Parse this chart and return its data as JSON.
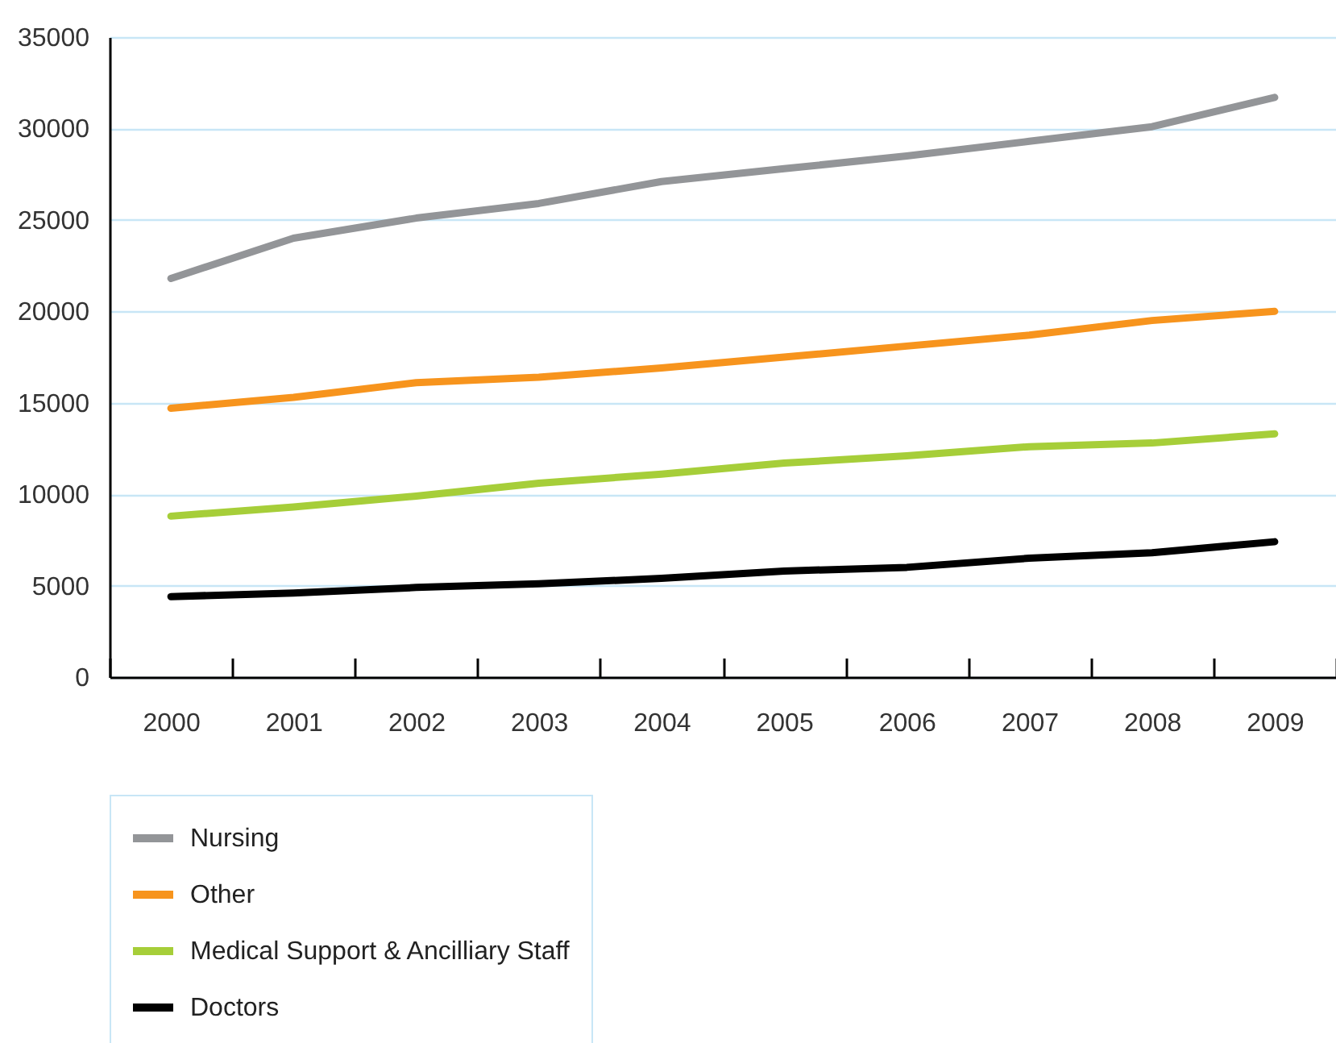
{
  "chart_data": {
    "type": "line",
    "categories": [
      "2000",
      "2001",
      "2002",
      "2003",
      "2004",
      "2005",
      "2006",
      "2007",
      "2008",
      "2009"
    ],
    "series": [
      {
        "name": "Nursing",
        "color": "#939598",
        "values": [
          21800,
          24000,
          25100,
          25900,
          27100,
          27800,
          28500,
          29300,
          30100,
          31700
        ]
      },
      {
        "name": "Other",
        "color": "#f7941d",
        "values": [
          14700,
          15300,
          16100,
          16400,
          16900,
          17500,
          18100,
          18700,
          19500,
          20000
        ]
      },
      {
        "name": "Medical Support & Ancilliary Staff",
        "color": "#a6ce39",
        "values": [
          8800,
          9300,
          9900,
          10600,
          11100,
          11700,
          12100,
          12600,
          12800,
          13300
        ]
      },
      {
        "name": "Doctors",
        "color": "#000000",
        "values": [
          4400,
          4600,
          4900,
          5100,
          5400,
          5800,
          6000,
          6500,
          6800,
          7400
        ]
      }
    ],
    "ylim": [
      0,
      35000
    ],
    "yticks": [
      0,
      5000,
      10000,
      15000,
      20000,
      25000,
      30000,
      35000
    ],
    "grid": "y",
    "legend": "bottom left"
  }
}
